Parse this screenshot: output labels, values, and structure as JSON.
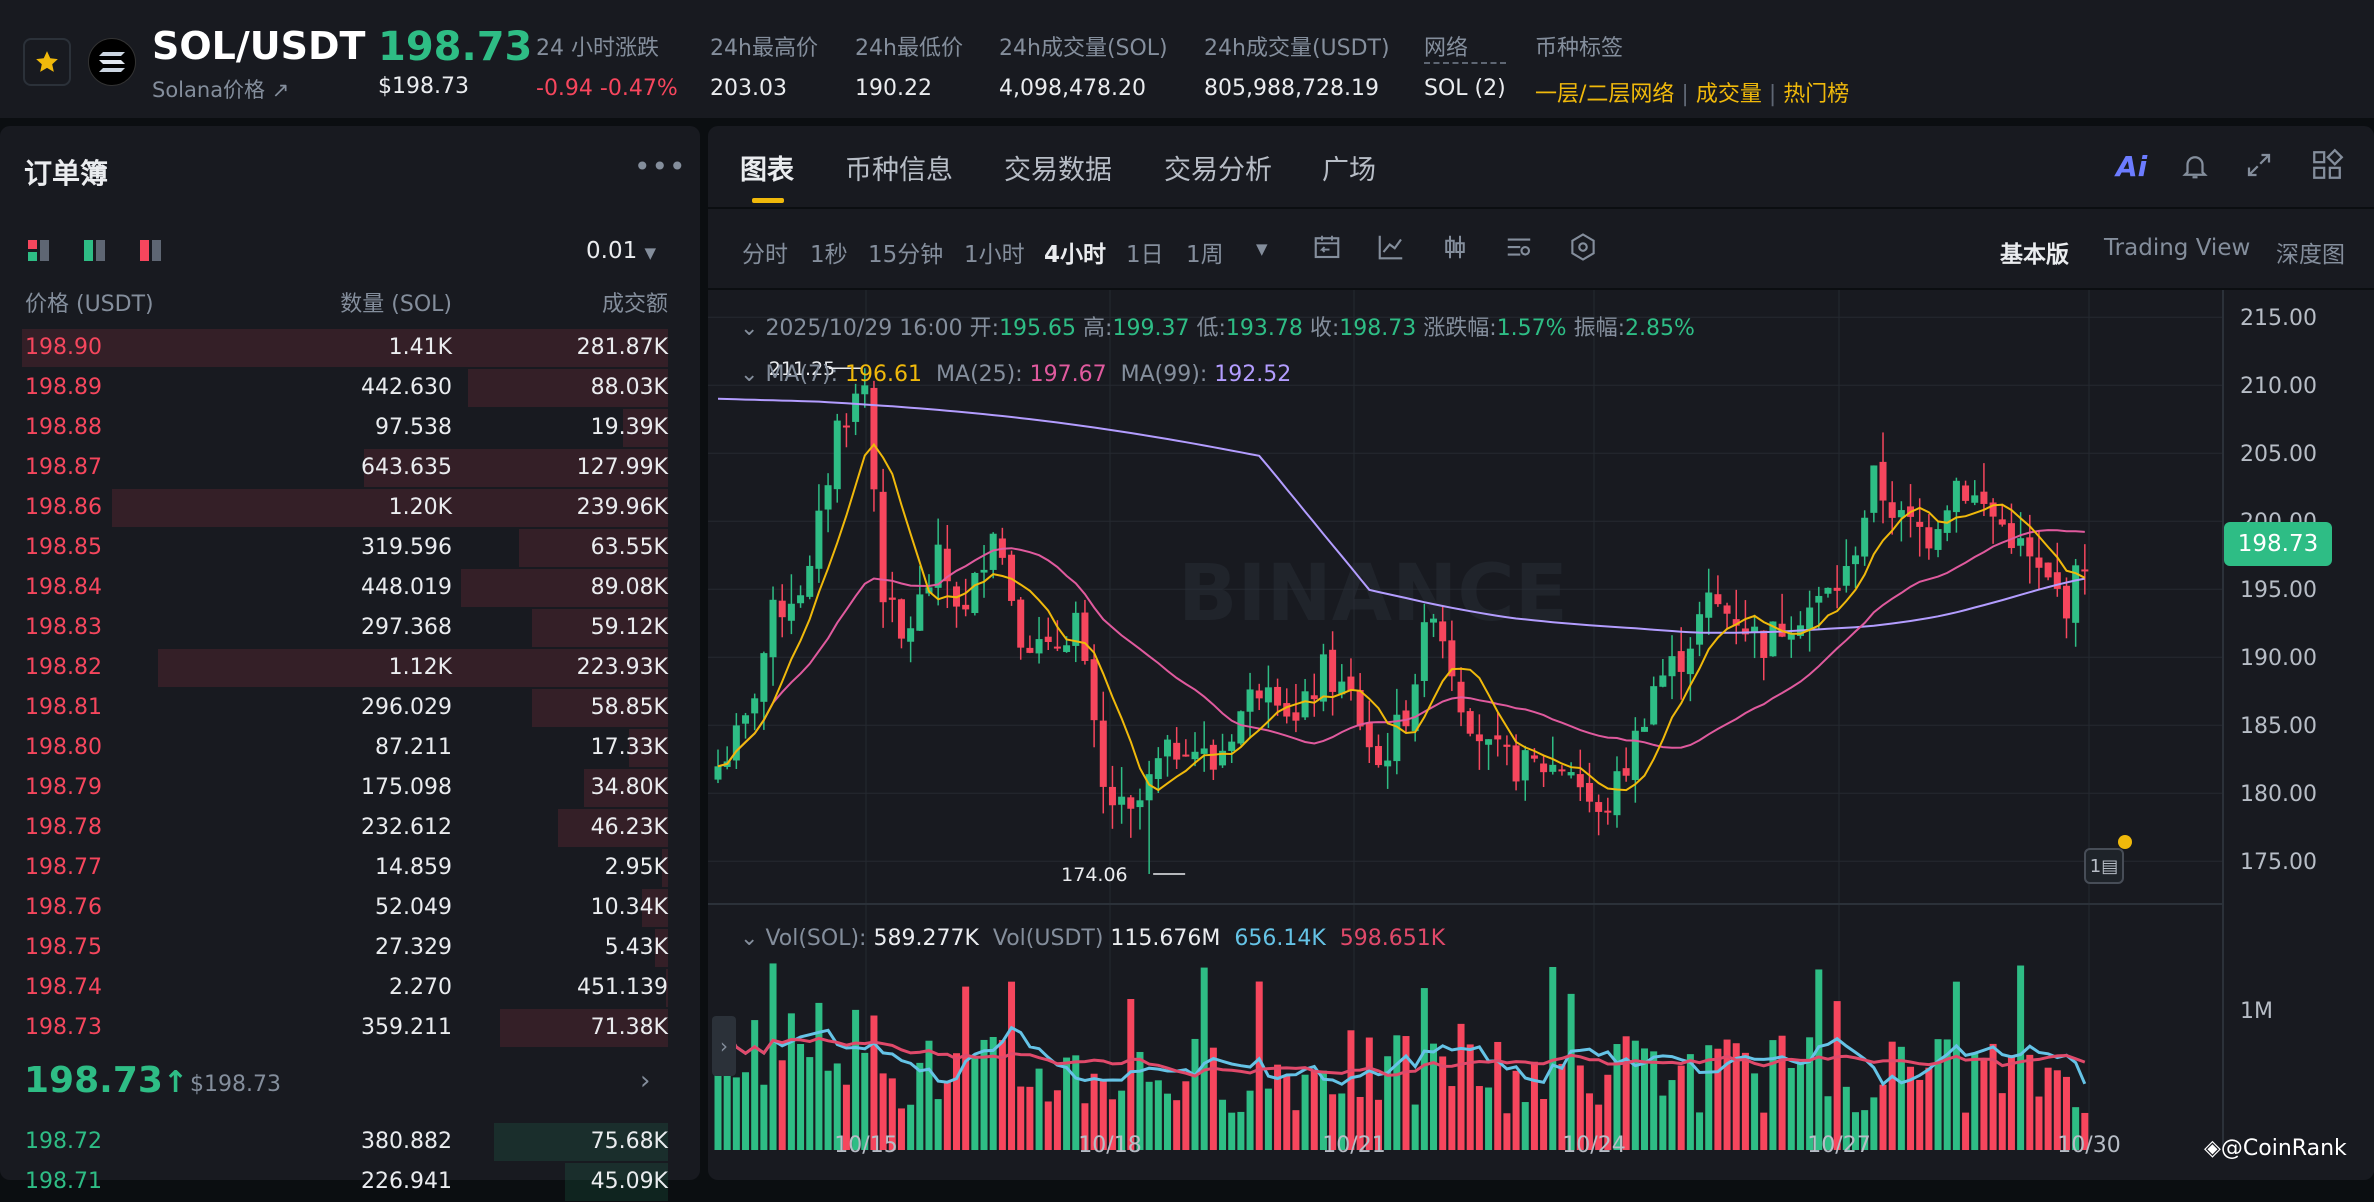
{
  "header": {
    "pair": "SOL/USDT",
    "subtitle": "Solana价格 ↗",
    "last_price": "198.73",
    "last_price_usd": "$198.73",
    "stats": [
      {
        "label": "24 小时涨跌",
        "value": "-0.94 -0.47%"
      },
      {
        "label": "24h最高价",
        "value": "203.03"
      },
      {
        "label": "24h最低价",
        "value": "190.22"
      },
      {
        "label": "24h成交量(SOL)",
        "value": "4,098,478.20"
      },
      {
        "label": "24h成交量(USDT)",
        "value": "805,988,728.19"
      },
      {
        "label": "网络",
        "value": "SOL (2)"
      },
      {
        "label": "币种标签",
        "value": ""
      }
    ],
    "tags": [
      "一层/二层网络",
      "成交量",
      "热门榜"
    ],
    "colors": {
      "up": "#2ebd85",
      "down": "#f6465d",
      "accent": "#f0b90b"
    }
  },
  "orderbook": {
    "title": "订单簿",
    "more_icon": "more-icon",
    "precision": "0.01",
    "headers": {
      "price": "价格 (USDT)",
      "qty": "数量 (SOL)",
      "total": "成交额"
    },
    "asks": [
      {
        "price": "198.90",
        "qty": "1.41K",
        "total": "281.87K",
        "depth": 1.0
      },
      {
        "price": "198.89",
        "qty": "442.630",
        "total": "88.03K",
        "depth": 0.31
      },
      {
        "price": "198.88",
        "qty": "97.538",
        "total": "19.39K",
        "depth": 0.07
      },
      {
        "price": "198.87",
        "qty": "643.635",
        "total": "127.99K",
        "depth": 0.47
      },
      {
        "price": "198.86",
        "qty": "1.20K",
        "total": "239.96K",
        "depth": 0.86
      },
      {
        "price": "198.85",
        "qty": "319.596",
        "total": "63.55K",
        "depth": 0.23
      },
      {
        "price": "198.84",
        "qty": "448.019",
        "total": "89.08K",
        "depth": 0.32
      },
      {
        "price": "198.83",
        "qty": "297.368",
        "total": "59.12K",
        "depth": 0.21
      },
      {
        "price": "198.82",
        "qty": "1.12K",
        "total": "223.93K",
        "depth": 0.79
      },
      {
        "price": "198.81",
        "qty": "296.029",
        "total": "58.85K",
        "depth": 0.21
      },
      {
        "price": "198.80",
        "qty": "87.211",
        "total": "17.33K",
        "depth": 0.06
      },
      {
        "price": "198.79",
        "qty": "175.098",
        "total": "34.80K",
        "depth": 0.13
      },
      {
        "price": "198.78",
        "qty": "232.612",
        "total": "46.23K",
        "depth": 0.17
      },
      {
        "price": "198.77",
        "qty": "14.859",
        "total": "2.95K",
        "depth": 0.01
      },
      {
        "price": "198.76",
        "qty": "52.049",
        "total": "10.34K",
        "depth": 0.04
      },
      {
        "price": "198.75",
        "qty": "27.329",
        "total": "5.43K",
        "depth": 0.02
      },
      {
        "price": "198.74",
        "qty": "2.270",
        "total": "451.139",
        "depth": 0.002
      },
      {
        "price": "198.73",
        "qty": "359.211",
        "total": "71.38K",
        "depth": 0.26
      }
    ],
    "mid_price": "198.73",
    "mid_usd": "$198.73",
    "bids": [
      {
        "price": "198.72",
        "qty": "380.882",
        "total": "75.68K",
        "depth": 0.27
      },
      {
        "price": "198.71",
        "qty": "226.941",
        "total": "45.09K",
        "depth": 0.16
      }
    ]
  },
  "chart_panel": {
    "tabs": [
      "图表",
      "币种信息",
      "交易数据",
      "交易分析",
      "广场"
    ],
    "active_tab": "图表",
    "timeframes": [
      "分时",
      "1秒",
      "15分钟",
      "1小时",
      "4小时",
      "1日",
      "1周"
    ],
    "active_timeframe": "4小时",
    "views": [
      "基本版",
      "Trading View",
      "深度图"
    ],
    "active_view": "基本版",
    "ohlc": {
      "date": "2025/10/29 16:00",
      "open_label": "开:",
      "open": "195.65",
      "high_label": "高:",
      "high": "199.37",
      "low_label": "低:",
      "low": "193.78",
      "close_label": "收:",
      "close": "198.73",
      "chg_label": "涨跌幅:",
      "chg": "1.57%",
      "amp_label": "振幅:",
      "amp": "2.85%"
    },
    "ma": {
      "ma7_label": "MA(7):",
      "ma7": "196.61",
      "ma25_label": "MA(25):",
      "ma25": "197.67",
      "ma99_label": "MA(99):",
      "ma99": "192.52"
    },
    "vol": {
      "sol_label": "Vol(SOL):",
      "sol": "589.277K",
      "usdt_label": "Vol(USDT)",
      "usdt": "115.676M",
      "ma1": "656.14K",
      "ma2": "598.651K"
    },
    "watermark": "BINANCE",
    "credit": "@CoinRank"
  },
  "chart_data": {
    "type": "candlestick",
    "interval": "4h",
    "price_axis": [
      "215.00",
      "210.00",
      "205.00",
      "200.00",
      "195.00",
      "190.00",
      "185.00",
      "180.00",
      "175.00"
    ],
    "ylim": [
      172,
      217
    ],
    "x_ticks": [
      "10/15",
      "10/18",
      "10/21",
      "10/24",
      "10/27",
      "10/30"
    ],
    "high_marker": "211.25",
    "low_marker": "174.06",
    "current_price": "198.73",
    "volume_axis": [
      "1M"
    ],
    "anchors": [
      [
        0,
        182
      ],
      [
        3,
        185
      ],
      [
        6,
        193
      ],
      [
        10,
        196
      ],
      [
        13,
        207
      ],
      [
        16,
        210
      ],
      [
        18,
        195
      ],
      [
        20,
        191
      ],
      [
        24,
        197
      ],
      [
        27,
        193
      ],
      [
        30,
        200
      ],
      [
        33,
        192
      ],
      [
        36,
        190
      ],
      [
        39,
        193
      ],
      [
        42,
        180
      ],
      [
        45,
        178
      ],
      [
        48,
        182
      ],
      [
        51,
        184
      ],
      [
        54,
        182
      ],
      [
        57,
        186
      ],
      [
        60,
        189
      ],
      [
        63,
        185
      ],
      [
        66,
        189
      ],
      [
        69,
        187
      ],
      [
        72,
        182
      ],
      [
        75,
        186
      ],
      [
        78,
        194
      ],
      [
        81,
        187
      ],
      [
        84,
        183
      ],
      [
        87,
        182
      ],
      [
        90,
        182
      ],
      [
        93,
        182
      ],
      [
        96,
        178
      ],
      [
        99,
        182
      ],
      [
        102,
        188
      ],
      [
        105,
        190
      ],
      [
        108,
        194
      ],
      [
        111,
        193
      ],
      [
        114,
        191
      ],
      [
        117,
        193
      ],
      [
        120,
        194
      ],
      [
        123,
        196
      ],
      [
        126,
        203
      ],
      [
        129,
        200
      ],
      [
        132,
        199
      ],
      [
        135,
        203
      ],
      [
        138,
        201
      ],
      [
        141,
        199
      ],
      [
        144,
        196
      ],
      [
        147,
        194
      ],
      [
        150,
        199
      ]
    ]
  }
}
